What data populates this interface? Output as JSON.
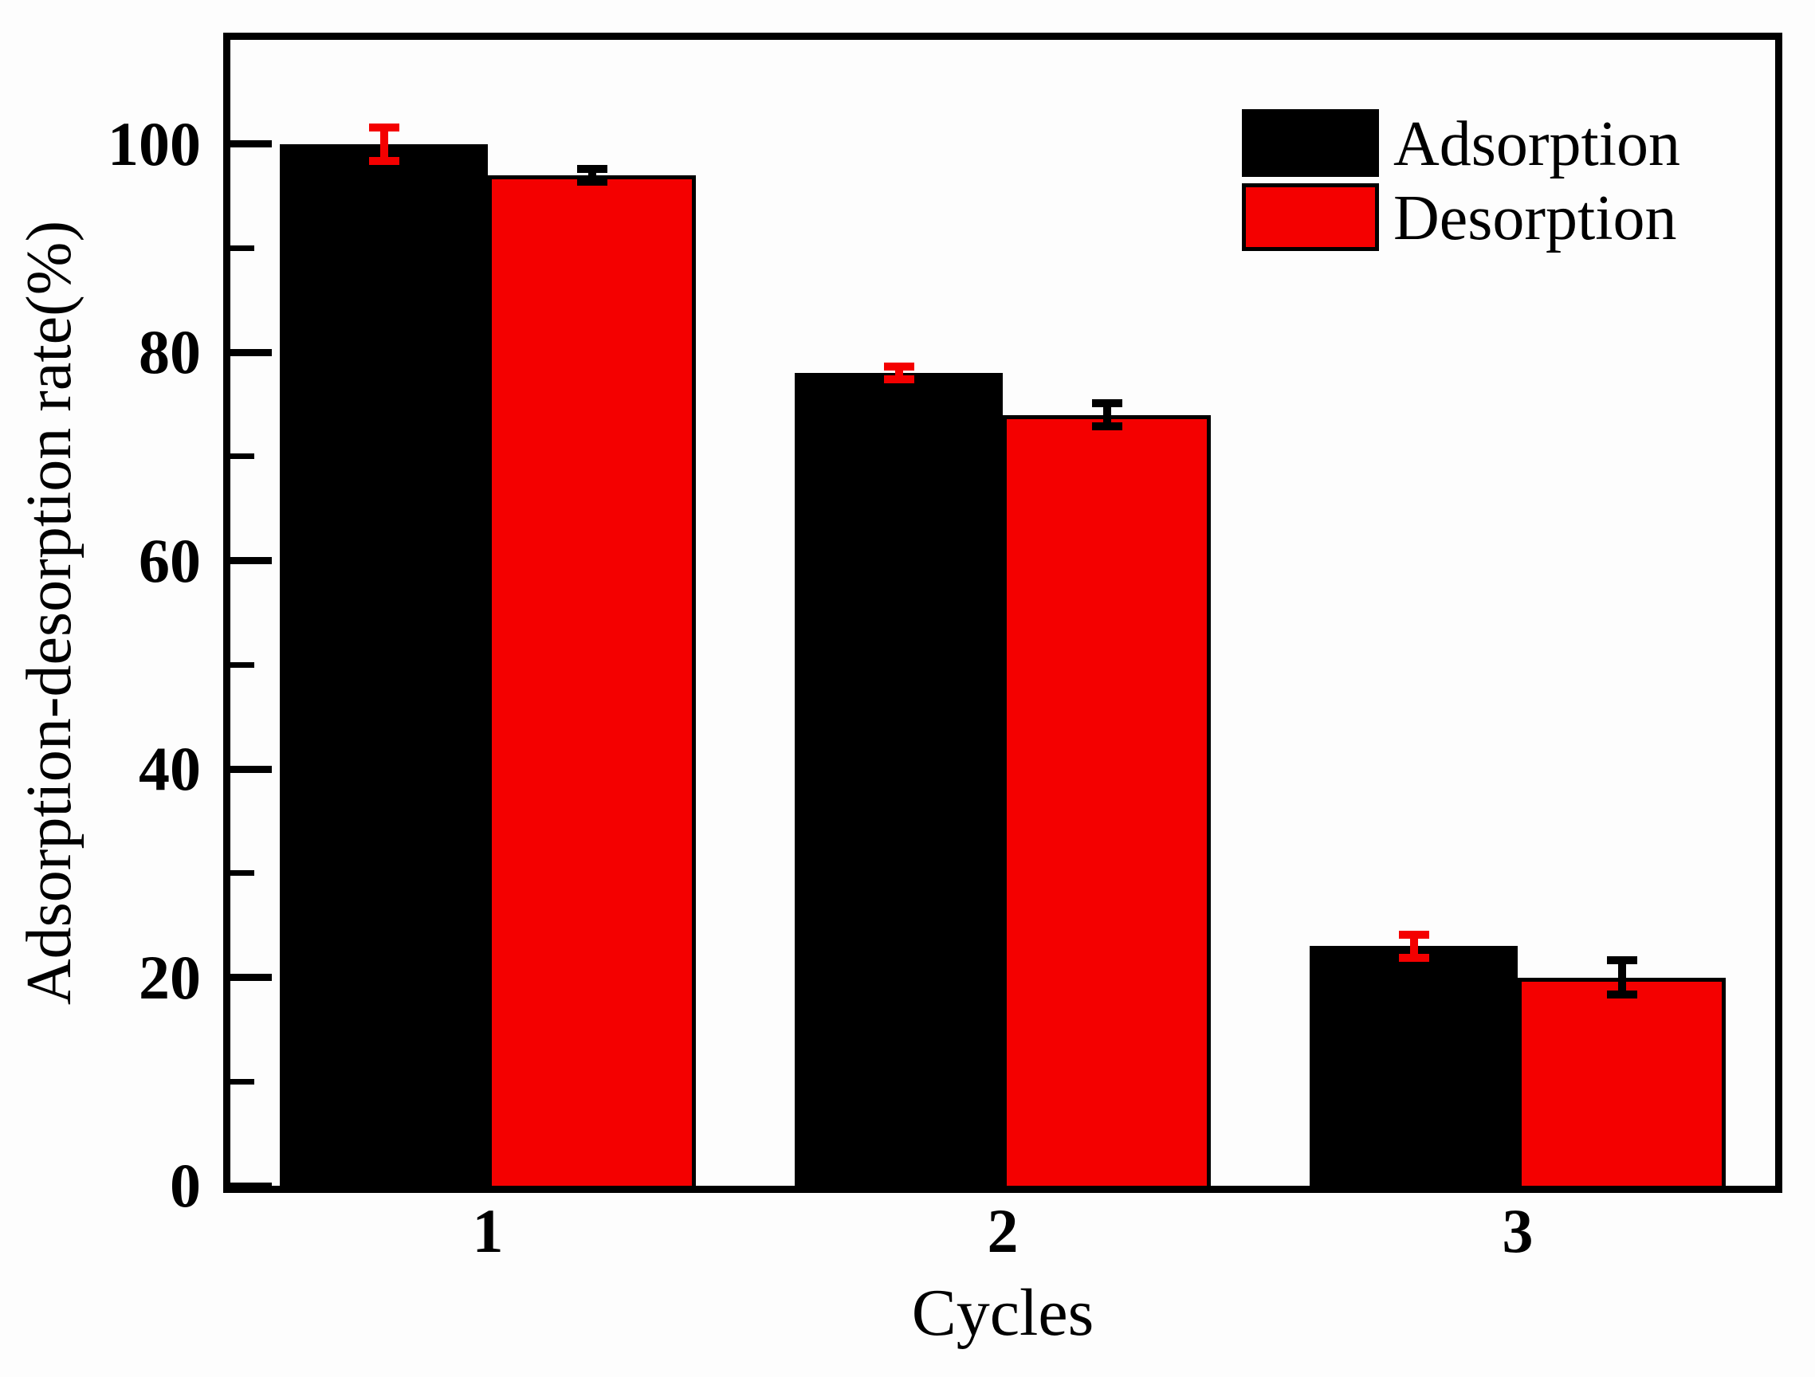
{
  "figure": {
    "background": "#fdfdfd",
    "axis_color": "#000000",
    "accent_red": "#f40000"
  },
  "chart_data": {
    "type": "bar",
    "title": "",
    "xlabel": "Cycles",
    "ylabel": "Adsorption-desorption rate(%)",
    "categories": [
      "1",
      "2",
      "3"
    ],
    "series": [
      {
        "name": "Adsorption",
        "color": "#000000",
        "bar_border": "#000000",
        "error_color": "#f40000",
        "values": [
          100,
          78,
          23
        ],
        "errors": [
          2,
          1,
          1.5
        ]
      },
      {
        "name": "Desorption",
        "color": "#f40000",
        "bar_border": "#000000",
        "error_color": "#000000",
        "values": [
          97,
          74,
          20
        ],
        "errors": [
          1,
          1.5,
          2
        ]
      }
    ],
    "ylim": [
      0,
      110
    ],
    "y_major_ticks": [
      0,
      20,
      40,
      60,
      80,
      100
    ],
    "y_minor_ticks": [
      10,
      30,
      50,
      70,
      90
    ],
    "grid": "off",
    "legend_position": "top-right-inside"
  },
  "legend": {
    "items": [
      {
        "label": "Adsorption",
        "color": "#000000"
      },
      {
        "label": "Desorption",
        "color": "#f40000"
      }
    ]
  }
}
